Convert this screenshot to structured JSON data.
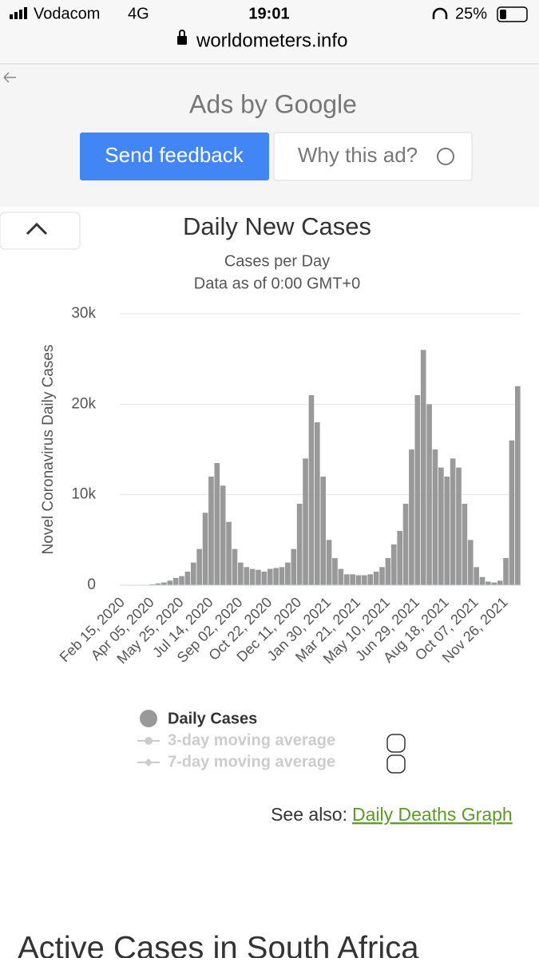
{
  "status_bar": {
    "carrier": "Vodacom",
    "network": "4G",
    "time": "19:01",
    "battery": "25%"
  },
  "url": "worldometers.info",
  "ad": {
    "label": "Ads by Google",
    "feedback_button": "Send feedback",
    "why_button": "Why this ad?"
  },
  "chart_data": {
    "type": "bar",
    "title": "Daily New Cases",
    "subtitle": "Cases per Day",
    "note": "Data as of 0:00 GMT+0",
    "y_label": "Novel Coronavirus Daily Cases",
    "categories": [
      "Feb 15, 2020",
      null,
      null,
      null,
      null,
      "Apr 05, 2020",
      null,
      null,
      null,
      null,
      "May 25, 2020",
      null,
      null,
      null,
      null,
      "Jul 14, 2020",
      null,
      null,
      null,
      null,
      "Sep 02, 2020",
      null,
      null,
      null,
      null,
      "Oct 22, 2020",
      null,
      null,
      null,
      null,
      "Dec 11, 2020",
      null,
      null,
      null,
      null,
      "Jan 30, 2021",
      null,
      null,
      null,
      null,
      "Mar 21, 2021",
      null,
      null,
      null,
      null,
      "May 10, 2021",
      null,
      null,
      null,
      null,
      "Jun 29, 2021",
      null,
      null,
      null,
      null,
      "Aug 18, 2021",
      null,
      null,
      null,
      null,
      "Oct 07, 2021",
      null,
      null,
      null,
      null,
      "Nov 26, 2021",
      null,
      null
    ],
    "series": [
      {
        "name": "Daily Cases",
        "color": "#999999",
        "values": [
          0,
          0,
          0,
          0,
          50,
          100,
          200,
          300,
          500,
          800,
          1000,
          1500,
          2500,
          4000,
          8000,
          12000,
          13500,
          11000,
          7000,
          4000,
          2500,
          2000,
          1800,
          1700,
          1500,
          1800,
          1900,
          2000,
          2500,
          4000,
          9000,
          14000,
          21000,
          18000,
          12000,
          5000,
          3000,
          1800,
          1200,
          1200,
          1100,
          1100,
          1200,
          1500,
          2000,
          3000,
          4500,
          6000,
          9000,
          15000,
          21000,
          26000,
          20000,
          15000,
          13000,
          12000,
          14000,
          13000,
          9000,
          5000,
          2000,
          900,
          400,
          300,
          500,
          3000,
          16000,
          22000
        ]
      }
    ],
    "ylim": [
      0,
      30000
    ],
    "yticks": [
      0,
      {
        "value": 10000,
        "label": "10k"
      },
      {
        "value": 20000,
        "label": "20k"
      },
      {
        "value": 30000,
        "label": "30k"
      }
    ],
    "grid": true,
    "legend_inactive": [
      "3-day moving average",
      "7-day moving average"
    ]
  },
  "see_also": {
    "label": "See also:",
    "link": "Daily Deaths Graph"
  },
  "section_heading": "Active Cases in South Africa"
}
